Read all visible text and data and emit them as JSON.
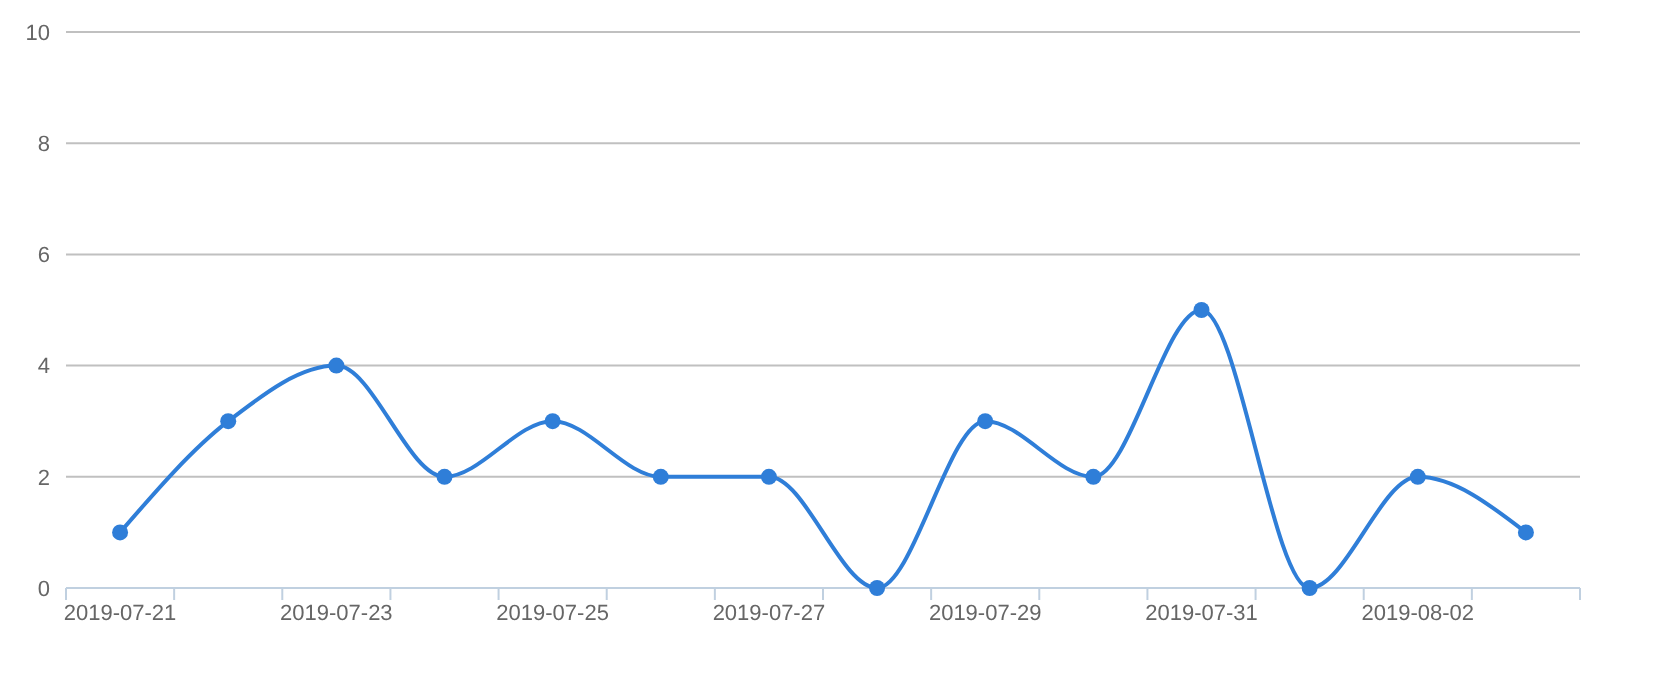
{
  "chart_data": {
    "type": "line",
    "categories": [
      "2019-07-21",
      null,
      "2019-07-23",
      null,
      "2019-07-25",
      null,
      "2019-07-27",
      null,
      "2019-07-29",
      null,
      "2019-07-31",
      null,
      "2019-08-02",
      null
    ],
    "series": [
      {
        "color": "#2f7ed8",
        "values": [
          1,
          3,
          4,
          2,
          3,
          2,
          2,
          0,
          3,
          2,
          5,
          0,
          2,
          1
        ]
      }
    ],
    "ylim": [
      0,
      10
    ],
    "yticks": [
      0,
      2,
      4,
      6,
      8,
      10
    ],
    "grid": "y",
    "marker": "circle",
    "line_style": "solid"
  }
}
